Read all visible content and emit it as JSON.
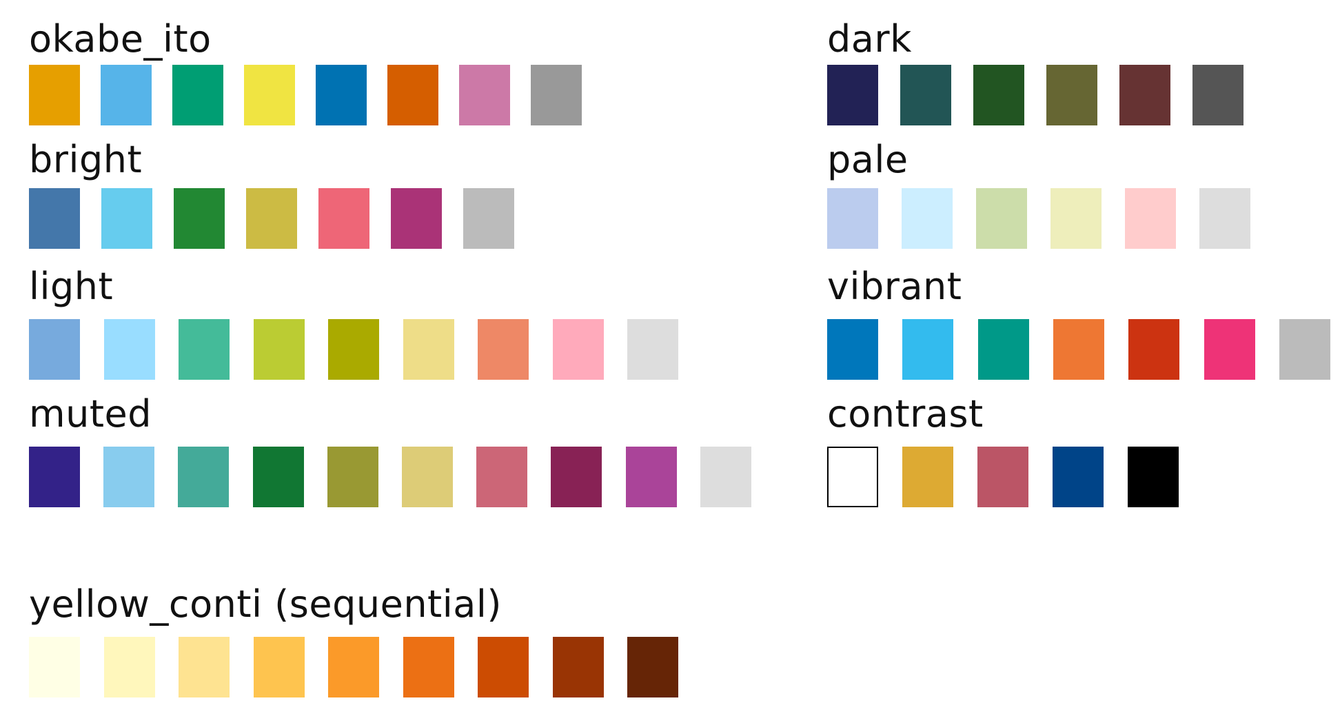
{
  "palettes": {
    "okabe_ito": {
      "name": "okabe_ito",
      "colors": [
        "#E69F00",
        "#56B4E9",
        "#009E73",
        "#F0E442",
        "#0072B2",
        "#D55E00",
        "#CC79A7",
        "#999999"
      ]
    },
    "bright": {
      "name": "bright",
      "colors": [
        "#4477AA",
        "#66CCEE",
        "#228833",
        "#CCBB44",
        "#EE6677",
        "#AA3377",
        "#BBBBBB"
      ]
    },
    "light": {
      "name": "light",
      "colors": [
        "#77AADD",
        "#99DDFF",
        "#44BB99",
        "#BBCC33",
        "#AAAA00",
        "#EEDD88",
        "#EE8866",
        "#FFAABB",
        "#DDDDDD"
      ]
    },
    "muted": {
      "name": "muted",
      "colors": [
        "#332288",
        "#88CCEE",
        "#44AA99",
        "#117733",
        "#999933",
        "#DDCC77",
        "#CC6677",
        "#882255",
        "#AA4499",
        "#DDDDDD"
      ]
    },
    "yellow_conti": {
      "name": "yellow_conti (sequential)",
      "colors": [
        "#FFFFE5",
        "#FFF7BC",
        "#FEE391",
        "#FEC44F",
        "#FB9A29",
        "#EC7014",
        "#CC4C02",
        "#993404",
        "#662506"
      ]
    },
    "dark": {
      "name": "dark",
      "colors": [
        "#222255",
        "#225555",
        "#225522",
        "#666633",
        "#663333",
        "#555555"
      ]
    },
    "pale": {
      "name": "pale",
      "colors": [
        "#BBCCEE",
        "#CCEEFF",
        "#CCDDAA",
        "#EEEEBB",
        "#FFCCCC",
        "#DDDDDD"
      ]
    },
    "vibrant": {
      "name": "vibrant",
      "colors": [
        "#0077BB",
        "#33BBEE",
        "#009988",
        "#EE7733",
        "#CC3311",
        "#EE3377",
        "#BBBBBB"
      ]
    },
    "contrast": {
      "name": "contrast",
      "colors": [
        "#FFFFFF",
        "#DDAA33",
        "#BB5566",
        "#004488",
        "#000000"
      ]
    }
  }
}
